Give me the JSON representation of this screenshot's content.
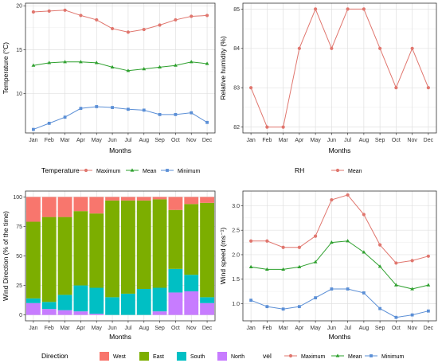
{
  "chart_data": [
    {
      "type": "line",
      "categories": [
        "Jan",
        "Feb",
        "Mar",
        "Apr",
        "May",
        "Jun",
        "Jul",
        "Aug",
        "Sep",
        "Oct",
        "Nov",
        "Dec"
      ],
      "series": [
        {
          "name": "Maximum",
          "color": "#E0766E",
          "marker": "circle",
          "values": [
            19.3,
            19.4,
            19.5,
            18.9,
            18.4,
            17.4,
            17.0,
            17.3,
            17.8,
            18.4,
            18.8,
            18.9
          ]
        },
        {
          "name": "Mean",
          "color": "#2EA02E",
          "marker": "triangle",
          "values": [
            13.2,
            13.5,
            13.6,
            13.6,
            13.5,
            13.0,
            12.6,
            12.8,
            13.0,
            13.2,
            13.6,
            13.4
          ]
        },
        {
          "name": "Minimum",
          "color": "#5B8FD6",
          "marker": "square",
          "values": [
            5.9,
            6.6,
            7.3,
            8.3,
            8.5,
            8.4,
            8.2,
            8.1,
            7.6,
            7.6,
            7.8,
            6.7
          ]
        }
      ],
      "xlabel": "Months",
      "ylabel": "Temperature (°C)",
      "yticks": [
        10,
        15,
        20
      ],
      "ylim": [
        5.5,
        20.3
      ],
      "grid": true,
      "legend": {
        "title": "Temperature",
        "position": "bottom",
        "entries": [
          "Maximum",
          "Mean",
          "Minimum"
        ]
      }
    },
    {
      "type": "line",
      "categories": [
        "Jan",
        "Feb",
        "Mar",
        "Apr",
        "May",
        "Jun",
        "Jul",
        "Aug",
        "Sep",
        "Oct",
        "Nov",
        "Dec"
      ],
      "series": [
        {
          "name": "Mean",
          "color": "#E0766E",
          "marker": "circle",
          "values": [
            83,
            82,
            82,
            84,
            85,
            84,
            85,
            85,
            84,
            83,
            84,
            83
          ]
        }
      ],
      "xlabel": "Months",
      "ylabel": "Relative humidity (%)",
      "yticks": [
        82,
        83,
        84,
        85
      ],
      "ylim": [
        81.85,
        85.15
      ],
      "grid": true,
      "legend": {
        "title": "RH",
        "position": "bottom",
        "entries": [
          "Mean"
        ]
      }
    },
    {
      "type": "bar",
      "stacked": true,
      "categories": [
        "Jan",
        "Feb",
        "Mar",
        "Apr",
        "May",
        "Jun",
        "Jul",
        "Aug",
        "Sep",
        "Oct",
        "Nov",
        "Dec"
      ],
      "series": [
        {
          "name": "North",
          "color": "#C77CFF",
          "values": [
            10,
            5,
            4,
            3,
            1,
            0,
            0,
            0,
            3,
            19,
            20,
            10
          ]
        },
        {
          "name": "South",
          "color": "#00BFC4",
          "values": [
            4,
            6,
            13,
            22,
            22,
            15,
            18,
            22,
            20,
            20,
            14,
            5
          ]
        },
        {
          "name": "East",
          "color": "#7CAE00",
          "values": [
            65,
            72,
            66,
            63,
            63,
            82,
            79,
            75,
            75,
            50,
            60,
            80
          ]
        },
        {
          "name": "West",
          "color": "#F8766D",
          "values": [
            21,
            17,
            17,
            12,
            14,
            3,
            3,
            3,
            2,
            11,
            6,
            5
          ]
        }
      ],
      "xlabel": "Months",
      "ylabel": "Wind Direction (% of the time)",
      "yticks": [
        0,
        25,
        50,
        75,
        100
      ],
      "ylim": [
        -5,
        105
      ],
      "grid": true,
      "legend": {
        "title": "Direction",
        "position": "bottom",
        "entries": [
          "West",
          "East",
          "South",
          "North"
        ]
      }
    },
    {
      "type": "line",
      "categories": [
        "Jan",
        "Feb",
        "Mar",
        "Apr",
        "May",
        "Jun",
        "Jul",
        "Aug",
        "Sep",
        "Oct",
        "Nov",
        "Dec"
      ],
      "series": [
        {
          "name": "Maximum",
          "color": "#E0766E",
          "marker": "circle",
          "values": [
            2.28,
            2.28,
            2.15,
            2.15,
            2.38,
            3.12,
            3.22,
            2.82,
            2.2,
            1.83,
            1.88,
            1.97
          ]
        },
        {
          "name": "Mean",
          "color": "#2EA02E",
          "marker": "triangle",
          "values": [
            1.75,
            1.7,
            1.7,
            1.75,
            1.85,
            2.25,
            2.28,
            2.05,
            1.76,
            1.38,
            1.3,
            1.38
          ]
        },
        {
          "name": "Minimum",
          "color": "#5B8FD6",
          "marker": "square",
          "values": [
            1.07,
            0.94,
            0.89,
            0.94,
            1.12,
            1.3,
            1.3,
            1.22,
            0.9,
            0.72,
            0.77,
            0.85
          ]
        }
      ],
      "xlabel": "Months",
      "ylabel": "Wind speed (ms⁻¹)",
      "yticks": [
        1.0,
        1.5,
        2.0,
        2.5,
        3.0
      ],
      "ylim": [
        0.65,
        3.3
      ],
      "grid": true,
      "legend": {
        "title": "vel",
        "position": "bottom",
        "entries": [
          "Maximum",
          "Mean",
          "Minimum"
        ]
      }
    }
  ]
}
